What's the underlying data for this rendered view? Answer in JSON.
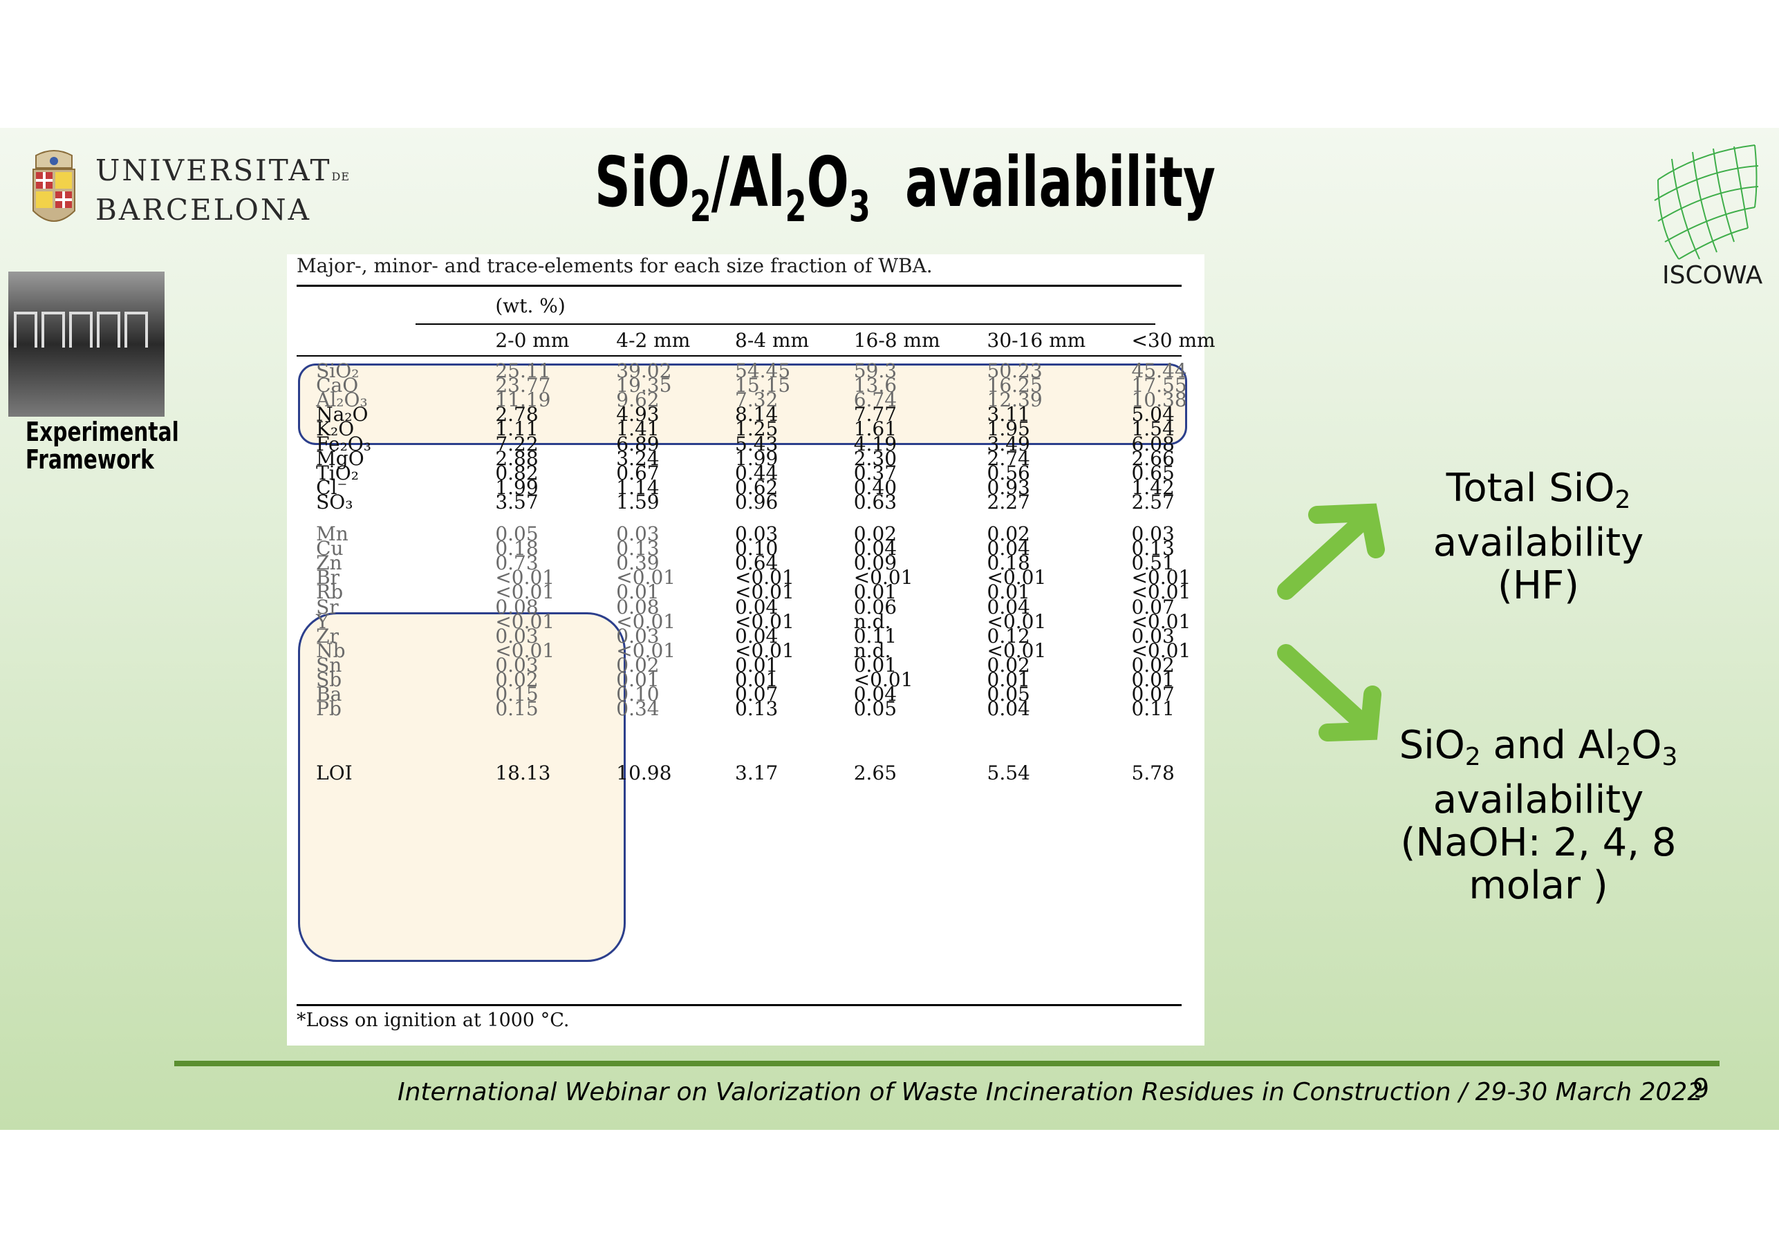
{
  "slide": {
    "title": {
      "pre": "SiO",
      "s1": "2",
      "mid": "/Al",
      "s2": "2",
      "o": "O",
      "s3": "3",
      "post": "  availability"
    },
    "university_logo": {
      "line1": "UNIVERSITAT",
      "de": "DE",
      "line2": "BARCELONA"
    },
    "iscowa_logo": {
      "text": "ISCOWA"
    },
    "sidebar_label": {
      "line1": "Experimental",
      "line2": "Framework"
    },
    "table": {
      "caption": "Major-, minor- and trace-elements for each size fraction of WBA.",
      "unit": "(wt. %)",
      "columns": [
        "2-0 mm",
        "4-2 mm",
        "8-4 mm",
        "16-8 mm",
        "30-16 mm",
        "<30 mm"
      ],
      "major_rows": [
        {
          "name": "SiO₂",
          "values": [
            "25.11",
            "39.02",
            "54.45",
            "59.3",
            "50.23",
            "45.44"
          ]
        },
        {
          "name": "CaO",
          "values": [
            "23.77",
            "19.35",
            "15.15",
            "13.6",
            "16.25",
            "17.55"
          ]
        },
        {
          "name": "Al₂O₃",
          "values": [
            "11.19",
            "9.62",
            "7.32",
            "6.74",
            "12.39",
            "10.38"
          ]
        },
        {
          "name": "Na₂O",
          "values": [
            "2.78",
            "4.93",
            "8.14",
            "7.77",
            "3.11",
            "5.04"
          ]
        },
        {
          "name": "K₂O",
          "values": [
            "1.11",
            "1.41",
            "1.25",
            "1.61",
            "1.95",
            "1.54"
          ]
        },
        {
          "name": "Fe₂O₃",
          "values": [
            "7.22",
            "6.89",
            "5.43",
            "4.19",
            "3.49",
            "6.08"
          ]
        },
        {
          "name": "MgO",
          "values": [
            "2.88",
            "3.24",
            "1.99",
            "2.30",
            "2.74",
            "2.66"
          ]
        },
        {
          "name": "TiO₂",
          "values": [
            "0.82",
            "0.67",
            "0.44",
            "0.37",
            "0.56",
            "0.65"
          ]
        },
        {
          "name": "Cl⁻",
          "values": [
            "1.99",
            "1.14",
            "0.62",
            "0.40",
            "0.93",
            "1.42"
          ]
        },
        {
          "name": "SO₃",
          "values": [
            "3.57",
            "1.59",
            "0.96",
            "0.63",
            "2.27",
            "2.57"
          ]
        }
      ],
      "trace_rows": [
        {
          "name": "Mn",
          "values": [
            "0.05",
            "0.03",
            "0.03",
            "0.02",
            "0.02",
            "0.03"
          ]
        },
        {
          "name": "Cu",
          "values": [
            "0.18",
            "0.13",
            "0.10",
            "0.04",
            "0.04",
            "0.13"
          ]
        },
        {
          "name": "Zn",
          "values": [
            "0.73",
            "0.39",
            "0.64",
            "0.09",
            "0.18",
            "0.51"
          ]
        },
        {
          "name": "Br",
          "values": [
            "<0.01",
            "<0.01",
            "<0.01",
            "<0.01",
            "<0.01",
            "<0.01"
          ]
        },
        {
          "name": "Rb",
          "values": [
            "<0.01",
            "0.01",
            "<0.01",
            "0.01",
            "0.01",
            "<0.01"
          ]
        },
        {
          "name": "Sr",
          "values": [
            "0.08",
            "0.08",
            "0.04",
            "0.06",
            "0.04",
            "0.07"
          ]
        },
        {
          "name": "Y",
          "values": [
            "<0.01",
            "<0.01",
            "<0.01",
            "n.d.",
            "<0.01",
            "<0.01"
          ]
        },
        {
          "name": "Zr",
          "values": [
            "0.03",
            "0.03",
            "0.04",
            "0.11",
            "0.12",
            "0.03"
          ]
        },
        {
          "name": "Nb",
          "values": [
            "<0.01",
            "<0.01",
            "<0.01",
            "n.d.",
            "<0.01",
            "<0.01"
          ]
        },
        {
          "name": "Sn",
          "values": [
            "0.03",
            "0.02",
            "0.01",
            "0.01",
            "0.02",
            "0.02"
          ]
        },
        {
          "name": "Sb",
          "values": [
            "0.02",
            "0.01",
            "0.01",
            "<0.01",
            "0.01",
            "0.01"
          ]
        },
        {
          "name": "Ba",
          "values": [
            "0.15",
            "0.10",
            "0.07",
            "0.04",
            "0.05",
            "0.07"
          ]
        },
        {
          "name": "Pb",
          "values": [
            "0.15",
            "0.34",
            "0.13",
            "0.05",
            "0.04",
            "0.11"
          ]
        }
      ],
      "loi_row": {
        "name": "LOI",
        "values": [
          "18.13",
          "10.98",
          "3.17",
          "2.65",
          "5.54",
          "5.78"
        ]
      },
      "footnote": "*Loss on ignition at 1000 °C."
    },
    "right_top": {
      "line1_pre": "Total SiO",
      "line1_sub": "2",
      "line2": "availability",
      "line3": "(HF)"
    },
    "right_bottom": {
      "pre": "SiO",
      "s1": "2",
      "mid": " and Al",
      "s2": "2",
      "o": "O",
      "s3": "3",
      "line2": "availability",
      "line3": "(NaOH: 2, 4, 8",
      "line4": "molar )"
    },
    "footer": {
      "text": "International Webinar on Valorization of Waste Incineration Residues in Construction / 29-30 March 2022",
      "page_number": "9"
    },
    "colors": {
      "accent_green": "#7cc242",
      "footer_line": "#5b8f30",
      "highlight_border": "#2c3f8c"
    }
  }
}
